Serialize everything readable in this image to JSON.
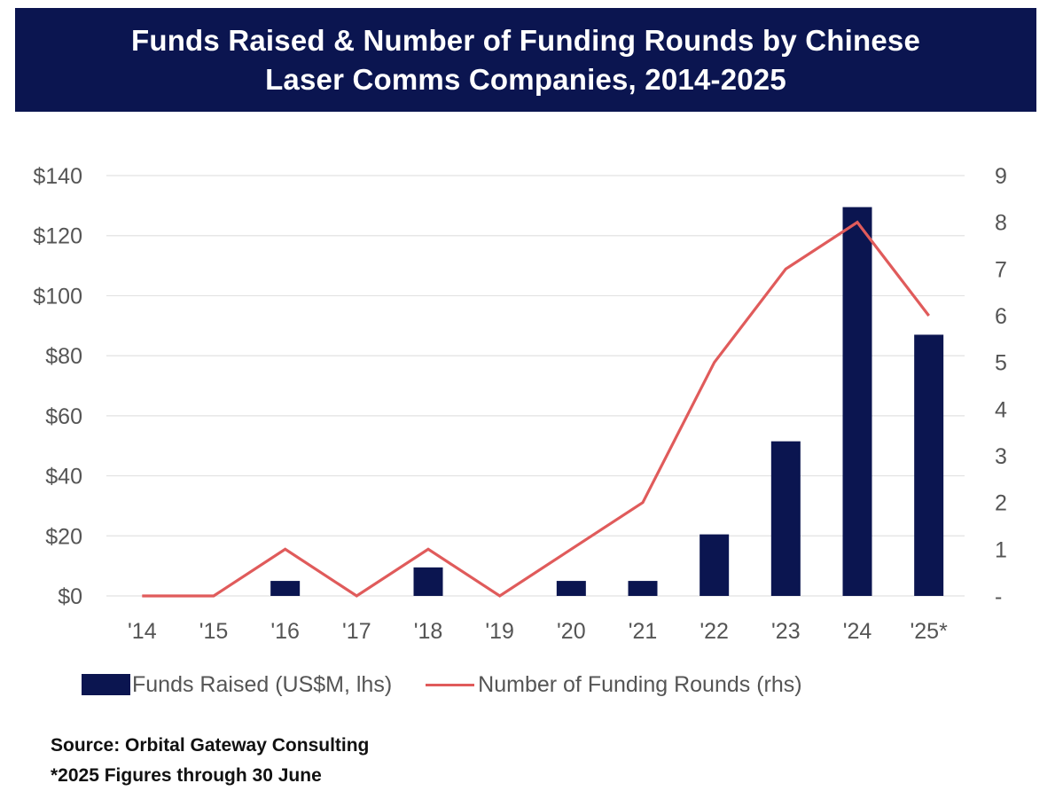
{
  "header": {
    "title_line1": "Funds Raised & Number of Funding Rounds by Chinese",
    "title_line2": "Laser Comms Companies, 2014-2025"
  },
  "chart_data": {
    "type": "bar",
    "title": "Funds Raised & Number of Funding Rounds by Chinese Laser Comms Companies, 2014-2025",
    "categories": [
      "'14",
      "'15",
      "'16",
      "'17",
      "'18",
      "'19",
      "'20",
      "'21",
      "'22",
      "'23",
      "'24",
      "'25*"
    ],
    "series": [
      {
        "name": "Funds Raised (US$M, lhs)",
        "type": "bar",
        "axis": "left",
        "color": "#0b1550",
        "values": [
          0,
          0,
          5,
          0,
          9.5,
          0,
          5,
          5,
          20.5,
          51.5,
          129.5,
          87
        ]
      },
      {
        "name": "Number of Funding Rounds (rhs)",
        "type": "line",
        "axis": "right",
        "color": "#e05b5b",
        "values": [
          0,
          0,
          1,
          0,
          1,
          0,
          1,
          2,
          5,
          7,
          8,
          6
        ]
      }
    ],
    "y_left": {
      "ylim": [
        0,
        140
      ],
      "ticks": [
        0,
        20,
        40,
        60,
        80,
        100,
        120,
        140
      ],
      "tick_labels": [
        "$0",
        "$20",
        "$40",
        "$60",
        "$80",
        "$100",
        "$120",
        "$140"
      ]
    },
    "y_right": {
      "ylim": [
        0,
        9
      ],
      "ticks": [
        0,
        1,
        2,
        3,
        4,
        5,
        6,
        7,
        8,
        9
      ],
      "tick_labels": [
        "-",
        "1",
        "2",
        "3",
        "4",
        "5",
        "6",
        "7",
        "8",
        "9"
      ]
    },
    "grid": true,
    "legend_position": "bottom"
  },
  "legend": {
    "bar_label": "Funds Raised (US$M, lhs)",
    "line_label": "Number of Funding Rounds (rhs)"
  },
  "footer": {
    "source": "Source: Orbital Gateway Consulting",
    "note": "*2025 Figures through 30 June"
  }
}
